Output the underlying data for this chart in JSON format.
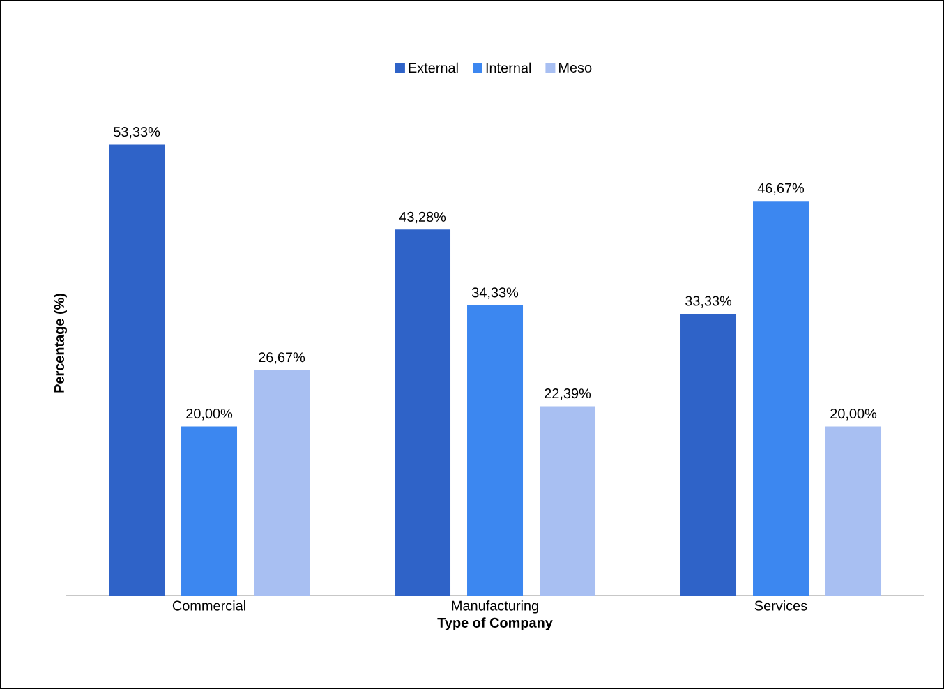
{
  "chart_data": {
    "type": "bar",
    "xlabel": "Type of Company",
    "ylabel": "Percentage (%)",
    "categories": [
      "Commercial",
      "Manufacturing",
      "Services"
    ],
    "series": [
      {
        "name": "External",
        "color": "#2f63c8",
        "values": [
          53.33,
          43.28,
          33.33
        ],
        "value_labels": [
          "53,33%",
          "43,28%",
          "33,33%"
        ]
      },
      {
        "name": "Internal",
        "color": "#3c87f0",
        "values": [
          20.0,
          34.33,
          46.67
        ],
        "value_labels": [
          "20,00%",
          "34,33%",
          "46,67%"
        ]
      },
      {
        "name": "Meso",
        "color": "#a8bff2",
        "values": [
          26.67,
          22.39,
          20.0
        ],
        "value_labels": [
          "26,67%",
          "22,39%",
          "20,00%"
        ]
      }
    ],
    "legend": "top"
  }
}
